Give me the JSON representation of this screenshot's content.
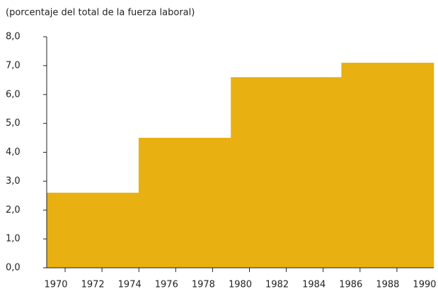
{
  "chart_data": {
    "type": "step_area",
    "subtitle": "(porcentaje del total de la fuerza laboral)",
    "categories": [
      1970,
      null,
      1972,
      null,
      1974,
      null,
      1976,
      null,
      1978,
      null,
      1980,
      null,
      1982,
      null,
      1984,
      null,
      1986,
      null,
      1988,
      null,
      1990
    ],
    "values": [
      2.6,
      2.6,
      2.6,
      2.6,
      2.6,
      4.5,
      4.5,
      4.5,
      4.5,
      4.5,
      6.6,
      6.6,
      6.6,
      6.6,
      6.6,
      6.6,
      7.1,
      7.1,
      7.1,
      7.1,
      7.1
    ],
    "color": "#e8b010",
    "ylim": [
      0,
      8
    ],
    "yticks": [
      {
        "value": 0,
        "label": "0,0"
      },
      {
        "value": 1,
        "label": "1,0"
      },
      {
        "value": 2,
        "label": "2,0"
      },
      {
        "value": 3,
        "label": "3,0"
      },
      {
        "value": 4,
        "label": "4,0"
      },
      {
        "value": 5,
        "label": "5,0"
      },
      {
        "value": 6,
        "label": "6,0"
      },
      {
        "value": 7,
        "label": "7,0"
      },
      {
        "value": 8,
        "label": "8,0"
      }
    ],
    "grid": false
  }
}
